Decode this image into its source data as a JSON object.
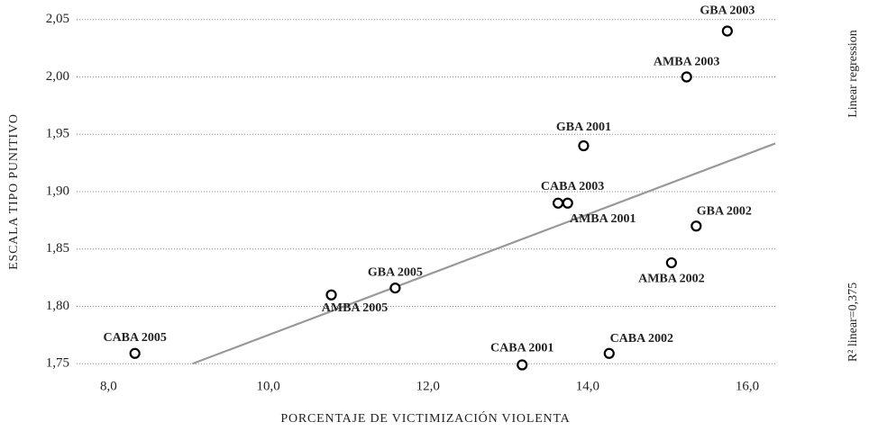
{
  "chart_data": {
    "type": "scatter",
    "x_label": "PORCENTAJE DE VICTIMIZACIÓN VIOLENTA",
    "y_label": "ESCALA TIPO PUNITIVO",
    "fit_label": "Linear regression",
    "r2_label": "R² linear=0,375",
    "labels": [
      "GBA 2003",
      "AMBA 2003",
      "GBA 2001",
      "CABA 2003",
      "AMBA 2001",
      "GBA 2002",
      "AMBA 2002",
      "GBA 2005",
      "AMBA 2005",
      "CABA 2005",
      "CABA 2001",
      "CABA 2002"
    ],
    "x": [
      15.75,
      15.24,
      13.95,
      13.63,
      13.75,
      15.36,
      15.05,
      11.59,
      10.79,
      8.33,
      13.18,
      14.27
    ],
    "y": [
      2.04,
      2.0,
      1.94,
      1.89,
      1.89,
      1.87,
      1.838,
      1.816,
      1.81,
      1.759,
      1.749,
      1.759
    ],
    "fit_line": {
      "x": [
        9.05,
        16.35
      ],
      "y": [
        1.75,
        1.942
      ]
    },
    "xlim": [
      7.6,
      16.35
    ],
    "ylim": [
      1.74,
      2.06
    ],
    "xticks": [
      {
        "value": 8,
        "label": "8,0"
      },
      {
        "value": 10,
        "label": "10,0"
      },
      {
        "value": 12,
        "label": "12,0"
      },
      {
        "value": 14,
        "label": "14,0"
      },
      {
        "value": 16,
        "label": "16,0"
      }
    ],
    "yticks": [
      {
        "value": 1.75,
        "label": "1,75"
      },
      {
        "value": 1.8,
        "label": "1,80"
      },
      {
        "value": 1.85,
        "label": "1,85"
      },
      {
        "value": 1.9,
        "label": "1,90"
      },
      {
        "value": 1.95,
        "label": "1,95"
      },
      {
        "value": 2.0,
        "label": "2,00"
      },
      {
        "value": 2.05,
        "label": "2,05"
      }
    ],
    "grid": true,
    "marker_color": "#000000",
    "fit_color": "#999999"
  }
}
